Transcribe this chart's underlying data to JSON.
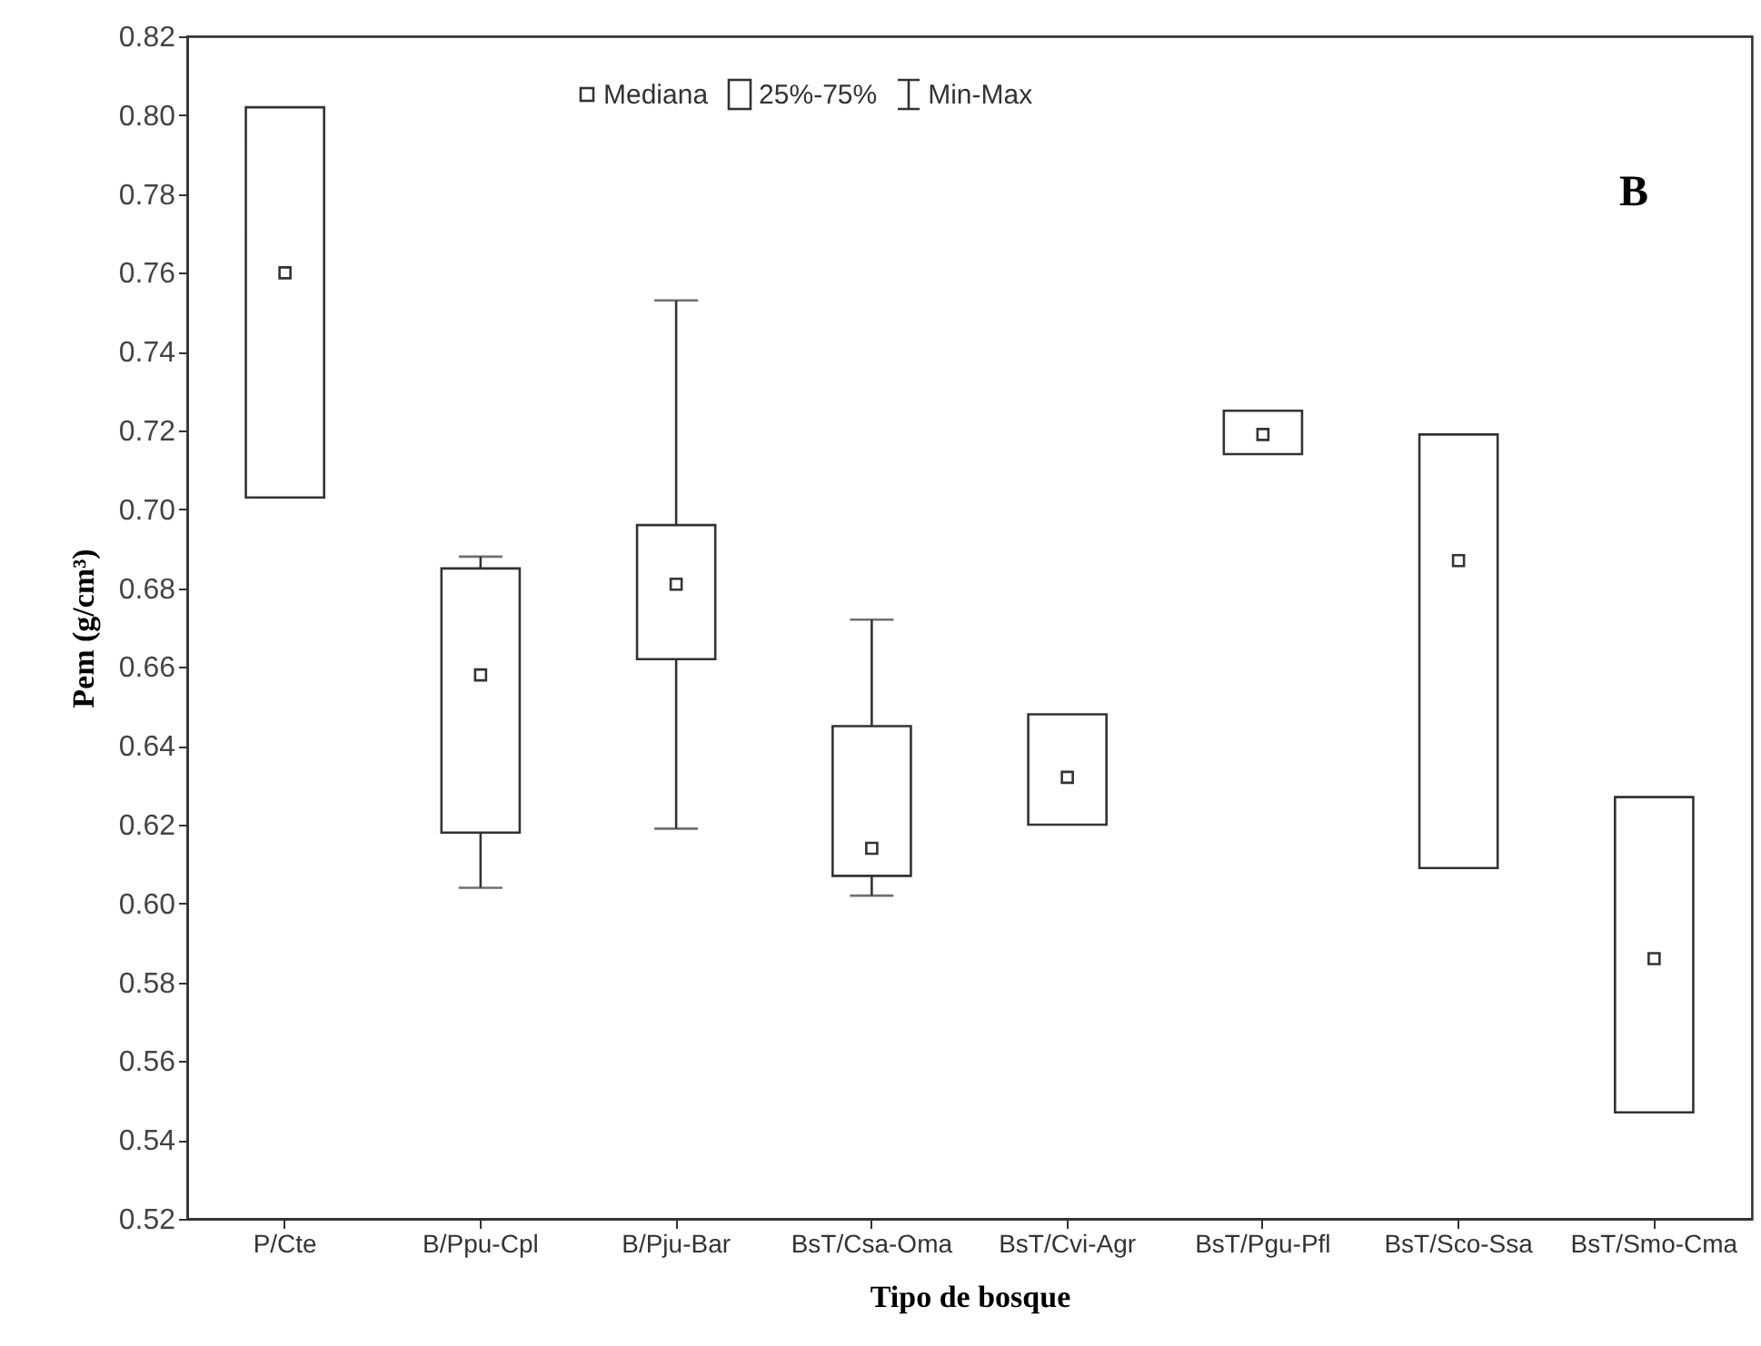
{
  "chart_data": {
    "type": "box",
    "xlabel": "Tipo de bosque",
    "ylabel": "Pem (g/cm³)",
    "categories": [
      "P/Cte",
      "B/Ppu-Cpl",
      "B/Pju-Bar",
      "BsT/Csa-Oma",
      "BsT/Cvi-Agr",
      "BsT/Pgu-Pfl",
      "BsT/Sco-Ssa",
      "BsT/Smo-Cma"
    ],
    "boxes": [
      {
        "low": 0.703,
        "q1": 0.703,
        "median": 0.76,
        "q3": 0.802,
        "high": 0.802
      },
      {
        "low": 0.604,
        "q1": 0.618,
        "median": 0.658,
        "q3": 0.685,
        "high": 0.688
      },
      {
        "low": 0.619,
        "q1": 0.662,
        "median": 0.681,
        "q3": 0.696,
        "high": 0.753
      },
      {
        "low": 0.602,
        "q1": 0.607,
        "median": 0.614,
        "q3": 0.645,
        "high": 0.672
      },
      {
        "low": 0.62,
        "q1": 0.62,
        "median": 0.632,
        "q3": 0.648,
        "high": 0.648
      },
      {
        "low": 0.714,
        "q1": 0.714,
        "median": 0.719,
        "q3": 0.725,
        "high": 0.725
      },
      {
        "low": 0.609,
        "q1": 0.609,
        "median": 0.687,
        "q3": 0.719,
        "high": 0.719
      },
      {
        "low": 0.547,
        "q1": 0.547,
        "median": 0.586,
        "q3": 0.627,
        "high": 0.627
      }
    ],
    "ylim": [
      0.52,
      0.82
    ],
    "yticks": [
      0.52,
      0.54,
      0.56,
      0.58,
      {
        "value": 0.6,
        "label": "0.60"
      },
      0.62,
      0.64,
      0.66,
      0.68,
      {
        "value": 0.7,
        "label": "0.70"
      },
      0.72,
      0.74,
      0.76,
      0.78,
      {
        "value": 0.8,
        "label": "0.80"
      },
      0.82
    ],
    "annotations": [
      "Mediana",
      "25%-75%",
      "Min-Max",
      "B"
    ]
  }
}
